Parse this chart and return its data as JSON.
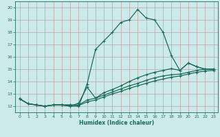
{
  "xlabel": "Humidex (Indice chaleur)",
  "bg_color": "#cceaea",
  "grid_color": "#b0d0d0",
  "line_color": "#1a6b5a",
  "xlim": [
    -0.5,
    23.5
  ],
  "ylim": [
    11.5,
    20.5
  ],
  "xticks": [
    0,
    1,
    2,
    3,
    4,
    5,
    6,
    7,
    8,
    9,
    10,
    11,
    12,
    13,
    14,
    15,
    16,
    17,
    18,
    19,
    20,
    21,
    22,
    23
  ],
  "yticks": [
    12,
    13,
    14,
    15,
    16,
    17,
    18,
    19,
    20
  ],
  "line1_y": [
    12.6,
    12.2,
    12.1,
    12.0,
    12.1,
    12.1,
    12.0,
    12.0,
    13.8,
    16.6,
    17.3,
    18.0,
    18.8,
    19.0,
    19.85,
    19.15,
    19.0,
    18.0,
    16.1,
    14.9,
    15.5,
    15.2,
    15.0,
    15.0
  ],
  "line2_y": [
    12.6,
    12.2,
    12.1,
    12.0,
    12.1,
    12.1,
    12.0,
    12.25,
    13.55,
    12.65,
    13.1,
    13.35,
    13.65,
    14.0,
    14.3,
    14.55,
    14.75,
    14.9,
    15.05,
    14.9,
    15.5,
    15.2,
    15.0,
    15.0
  ],
  "line3_y": [
    12.6,
    12.2,
    12.1,
    12.0,
    12.1,
    12.1,
    12.1,
    12.1,
    12.5,
    12.65,
    12.9,
    13.15,
    13.4,
    13.65,
    13.85,
    14.1,
    14.3,
    14.45,
    14.55,
    14.6,
    14.75,
    14.9,
    15.0,
    15.0
  ],
  "line4_y": [
    12.6,
    12.2,
    12.1,
    12.0,
    12.1,
    12.1,
    12.1,
    12.05,
    12.35,
    12.5,
    12.75,
    13.0,
    13.2,
    13.45,
    13.65,
    13.85,
    14.05,
    14.2,
    14.35,
    14.45,
    14.6,
    14.75,
    14.85,
    14.9
  ]
}
